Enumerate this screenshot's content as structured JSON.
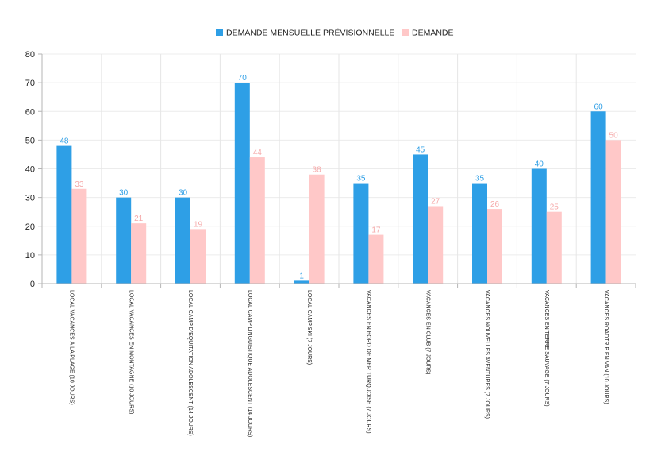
{
  "chart_data": {
    "type": "bar",
    "categories": [
      "LOCAL VACANCES À LA PLAGE (10 JOURS)",
      "LOCAL VACANCES EN MONTAGNE (10 JOURS)",
      "LOCAL CAMP D'ÉQUITATION ADOLESCENT (14 JOURS)",
      "LOCAL CAMP LINGUISTIQUE ADOLESCENT (14 JOURS)",
      "LOCAL CAMP SKI (7 JOURS)",
      "VACANCES EN BORD DE MER TURQUOISE (7 JOURS)",
      "VACANCES EN CLUB (7 JOURS)",
      "VACANCES NOUVELLES AVENTURES (7 JOURS)",
      "VACANCES EN TERRE SAUVAGE (7 JOURS)",
      "VACANCES ROADTRIP EN VAN (10 JOURS)"
    ],
    "series": [
      {
        "name": "DEMANDE MENSUELLE PRÉVISIONNELLE",
        "color": "#2e9fe6",
        "values": [
          48,
          30,
          30,
          70,
          1,
          35,
          45,
          35,
          40,
          60
        ]
      },
      {
        "name": "DEMANDE",
        "color": "#ffc8c8",
        "values": [
          33,
          21,
          19,
          44,
          38,
          17,
          27,
          26,
          25,
          50
        ]
      }
    ],
    "y_ticks": [
      0,
      10,
      20,
      30,
      40,
      50,
      60,
      70,
      80
    ],
    "ylim": [
      0,
      80
    ],
    "grid": true,
    "legend_position": "top-center",
    "data_labels": true,
    "label_colors": [
      "#2e9fe6",
      "#f5a9a9"
    ]
  }
}
